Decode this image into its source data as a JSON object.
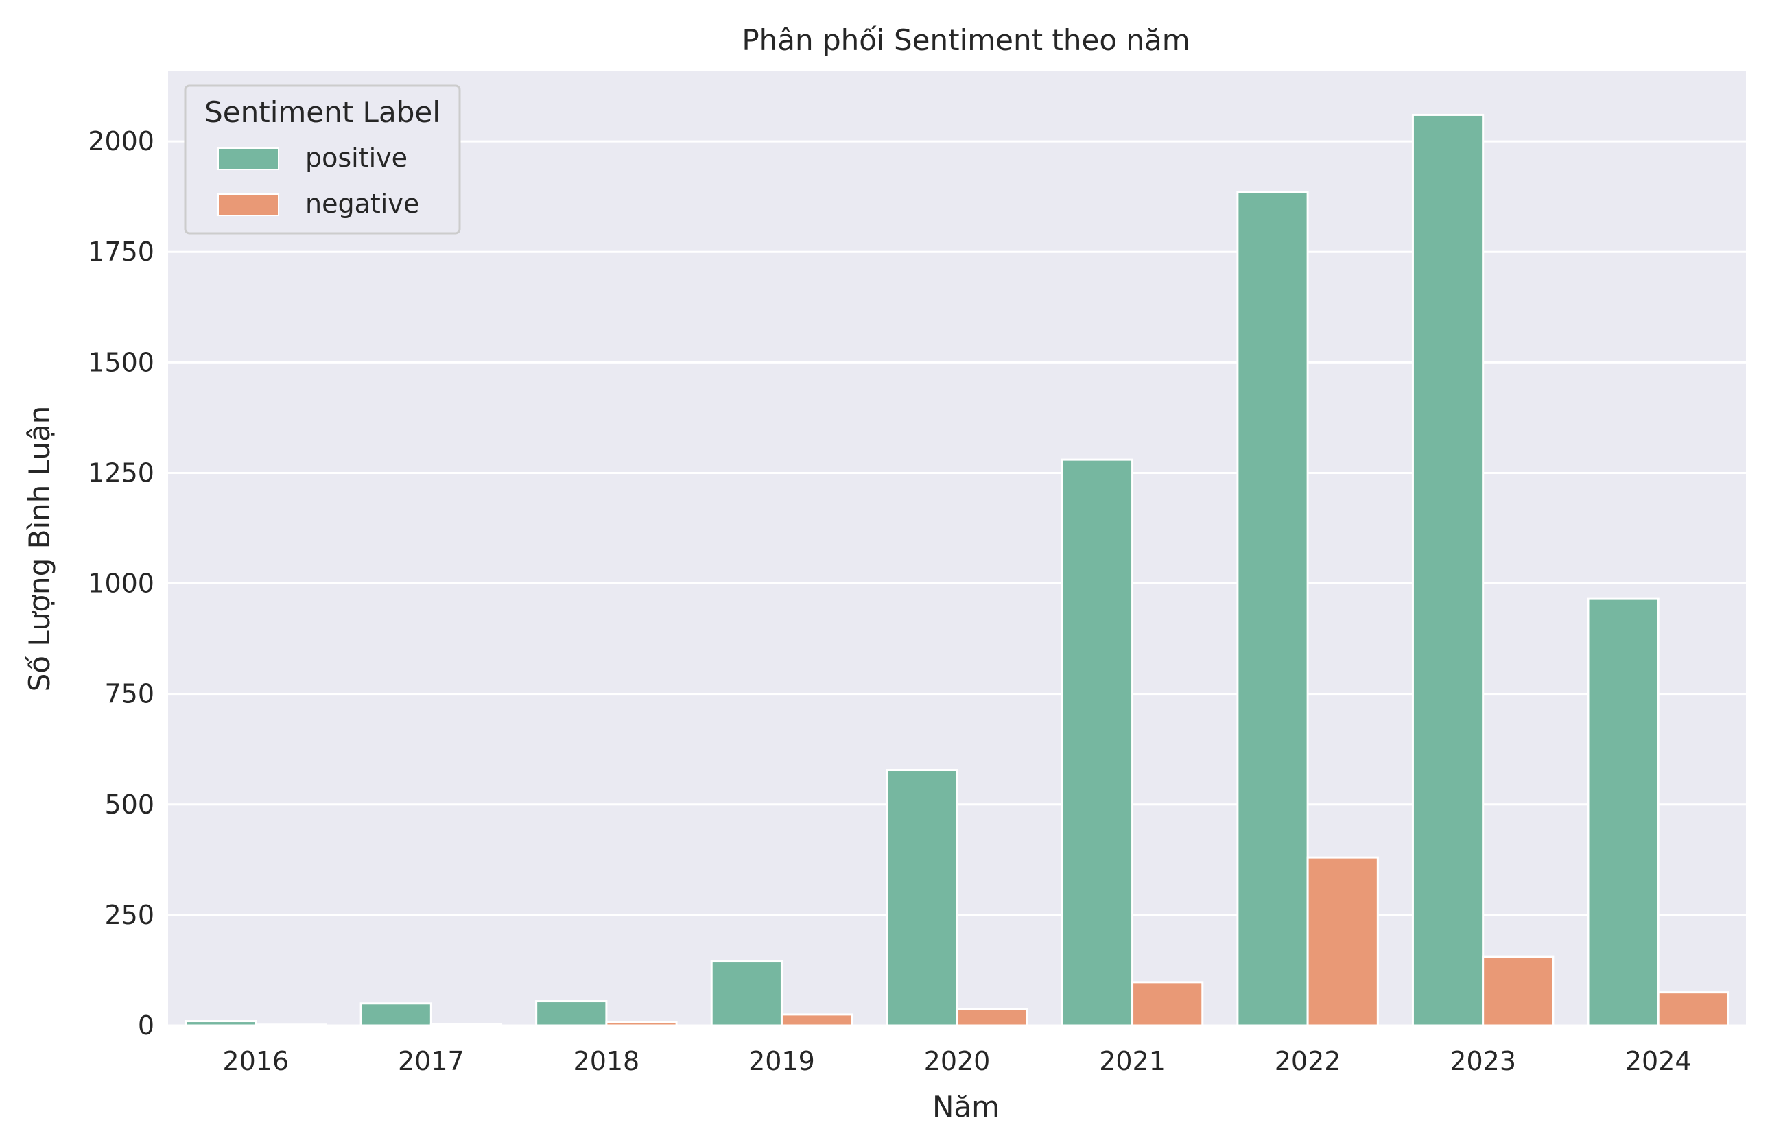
{
  "chart_data": {
    "type": "bar",
    "title": "Phân phối Sentiment theo năm",
    "xlabel": "Năm",
    "ylabel": "Số Lượng Bình Luận",
    "categories": [
      "2016",
      "2017",
      "2018",
      "2019",
      "2020",
      "2021",
      "2022",
      "2023",
      "2024"
    ],
    "series": [
      {
        "name": "positive",
        "color": "#76b7a0",
        "values": [
          10,
          50,
          55,
          145,
          578,
          1280,
          1885,
          2060,
          965
        ]
      },
      {
        "name": "negative",
        "color": "#e99976",
        "values": [
          2,
          3,
          7,
          25,
          38,
          98,
          380,
          155,
          75
        ]
      }
    ],
    "ylim": [
      0,
      2160
    ],
    "yticks": [
      0,
      250,
      500,
      750,
      1000,
      1250,
      1500,
      1750,
      2000
    ],
    "legend": {
      "title": "Sentiment Label",
      "placement": "top-left"
    },
    "grid": true,
    "background": "#eaeaf2",
    "grid_color": "#ffffff"
  }
}
